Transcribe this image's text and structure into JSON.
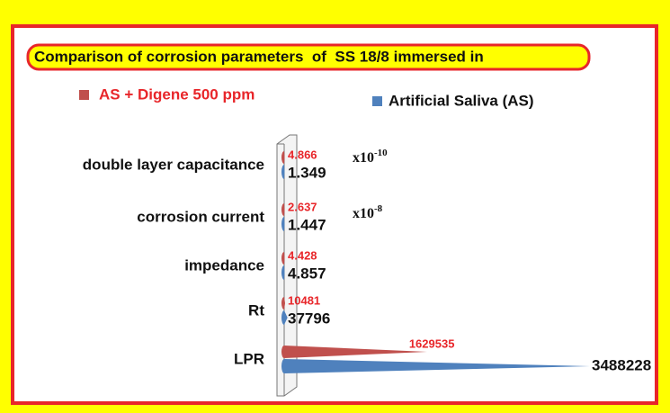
{
  "chart_data": {
    "type": "cone-bar",
    "title": "Comparison of corrosion parameters  of  SS 18/8 immersed in",
    "categories": [
      "double layer capacitance",
      "corrosion current",
      "impedance",
      "Rt",
      "LPR"
    ],
    "series": [
      {
        "name": "AS + Digene 500 ppm",
        "color": "#c0504d",
        "values": [
          4.866,
          2.637,
          4.428,
          10481,
          1629535
        ]
      },
      {
        "name": "Artificial Saliva (AS)",
        "color": "#4f81bd",
        "values": [
          1.349,
          1.447,
          4.857,
          37796,
          3488228
        ]
      }
    ],
    "annotations": [
      {
        "text": "x10",
        "exponent": "-10"
      },
      {
        "text": "x10",
        "exponent": "-8"
      }
    ]
  }
}
